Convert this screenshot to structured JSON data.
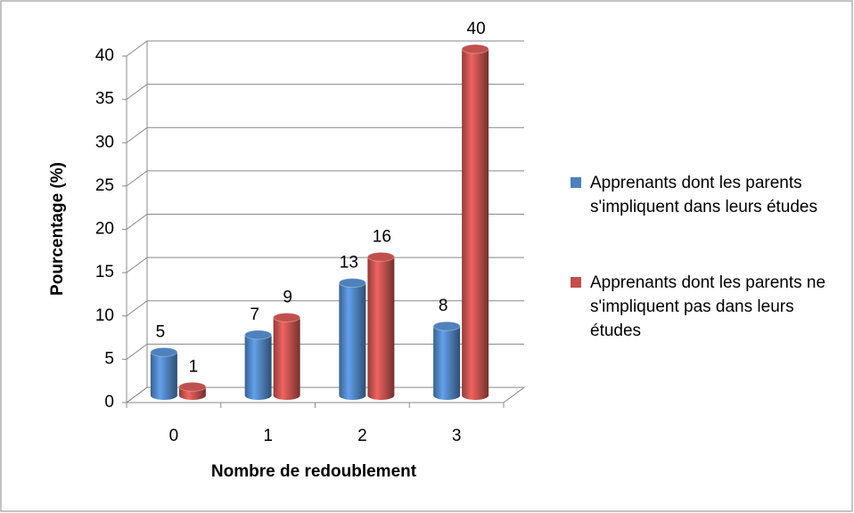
{
  "chart_data": {
    "type": "bar",
    "xlabel": "Nombre de redoublement",
    "ylabel": "Pourcentage (%)",
    "categories": [
      "0",
      "1",
      "2",
      "3"
    ],
    "series": [
      {
        "name": "Apprenants dont les parents s'impliquent dans leurs études",
        "color": "#4f81bd",
        "values": [
          5,
          7,
          13,
          8
        ]
      },
      {
        "name": "Apprenants dont les parents ne s'impliquent pas dans leurs études",
        "color": "#c0504d",
        "values": [
          1,
          9,
          16,
          40
        ]
      }
    ],
    "ylim": [
      0,
      40
    ],
    "yticks": [
      0,
      5,
      10,
      15,
      20,
      25,
      30,
      35,
      40
    ],
    "grid": true,
    "legend": "right"
  }
}
